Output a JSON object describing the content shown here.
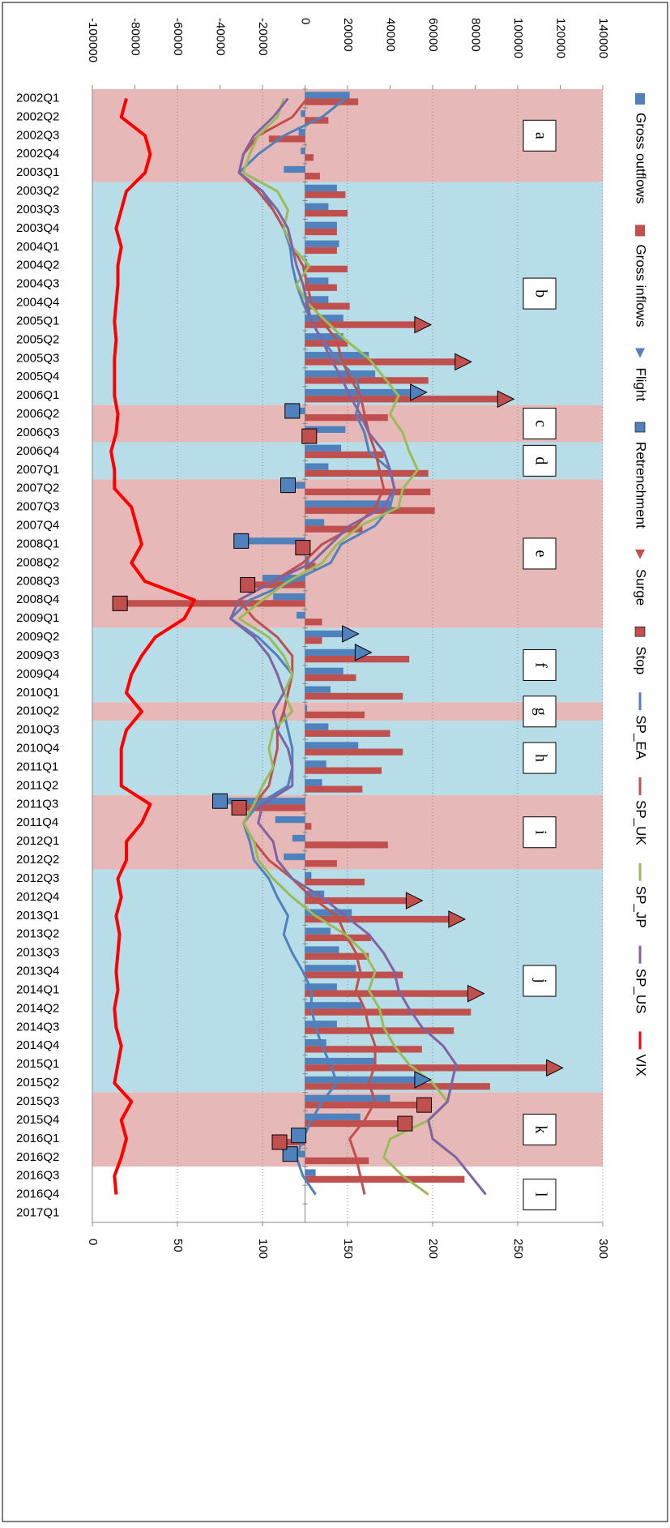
{
  "chart_data": {
    "type": "bar",
    "orientation": "horizontal",
    "categories": [
      "2002Q1",
      "2002Q2",
      "2002Q3",
      "2002Q4",
      "2003Q1",
      "2003Q2",
      "2003Q3",
      "2003Q4",
      "2004Q1",
      "2004Q2",
      "2004Q3",
      "2004Q4",
      "2005Q1",
      "2005Q2",
      "2005Q3",
      "2005Q4",
      "2006Q1",
      "2006Q2",
      "2006Q3",
      "2006Q4",
      "2007Q1",
      "2007Q2",
      "2007Q3",
      "2007Q4",
      "2008Q1",
      "2008Q2",
      "2008Q3",
      "2008Q4",
      "2009Q1",
      "2009Q2",
      "2009Q3",
      "2009Q4",
      "2010Q1",
      "2010Q2",
      "2010Q3",
      "2010Q4",
      "2011Q1",
      "2011Q2",
      "2011Q3",
      "2011Q4",
      "2012Q1",
      "2012Q2",
      "2012Q3",
      "2012Q4",
      "2013Q1",
      "2013Q2",
      "2013Q3",
      "2013Q4",
      "2014Q1",
      "2014Q2",
      "2014Q3",
      "2014Q4",
      "2015Q1",
      "2015Q2",
      "2015Q3",
      "2015Q4",
      "2016Q1",
      "2016Q2",
      "2016Q3",
      "2016Q4",
      "2017Q1"
    ],
    "ylim": [
      -100000,
      140000
    ],
    "yticks": [
      -100000,
      -80000,
      -60000,
      -40000,
      -20000,
      0,
      20000,
      40000,
      60000,
      80000,
      100000,
      120000,
      140000
    ],
    "y2lim": [
      0,
      300
    ],
    "y2ticks": [
      0,
      50,
      100,
      150,
      200,
      250,
      300
    ],
    "grid": true,
    "series": [
      {
        "name": "Gross outflows",
        "kind": "bar",
        "color": "#4f81bd",
        "values": [
          21000,
          -2000,
          -3000,
          -2000,
          -10000,
          15000,
          11000,
          15000,
          16000,
          1000,
          11000,
          11000,
          18000,
          18000,
          30000,
          33000,
          53000,
          -6000,
          19000,
          17000,
          11000,
          -8000,
          40000,
          9000,
          -30000,
          2000,
          -20000,
          -15000,
          -4000,
          21000,
          27000,
          18000,
          12000,
          1000,
          11000,
          25000,
          10000,
          8000,
          -40000,
          -14000,
          -6000,
          -10000,
          3000,
          9000,
          22000,
          12000,
          16000,
          24000,
          15000,
          27000,
          15000,
          10000,
          33000,
          55000,
          40000,
          26000,
          -3000,
          -7000,
          5000,
          null,
          null
        ]
      },
      {
        "name": "Gross inflows",
        "kind": "bar",
        "color": "#c0504d",
        "values": [
          25000,
          11000,
          -17000,
          4000,
          7000,
          19000,
          20000,
          15000,
          15000,
          20000,
          15000,
          21000,
          55000,
          20000,
          74000,
          58000,
          94000,
          39000,
          2000,
          37000,
          58000,
          59000,
          61000,
          27000,
          -1000,
          5000,
          -27000,
          -87000,
          8000,
          8000,
          49000,
          24000,
          46000,
          28000,
          40000,
          46000,
          36000,
          27000,
          -31000,
          3000,
          39000,
          15000,
          28000,
          51000,
          71000,
          31000,
          30000,
          46000,
          80000,
          78000,
          70000,
          55000,
          117000,
          87000,
          56000,
          47000,
          -12000,
          30000,
          75000,
          null,
          null
        ]
      },
      {
        "name": "Flight",
        "kind": "marker",
        "shape": "triangle",
        "on": 0,
        "color": "#4f81bd",
        "values": [
          null,
          null,
          null,
          null,
          null,
          null,
          null,
          null,
          null,
          null,
          null,
          null,
          null,
          null,
          null,
          null,
          53000,
          null,
          null,
          null,
          null,
          null,
          null,
          null,
          null,
          null,
          null,
          null,
          null,
          21000,
          27000,
          null,
          null,
          null,
          null,
          null,
          null,
          null,
          null,
          null,
          null,
          null,
          null,
          null,
          null,
          null,
          null,
          null,
          null,
          null,
          null,
          null,
          null,
          55000,
          null,
          null,
          null,
          null,
          null,
          null,
          null
        ]
      },
      {
        "name": "Retrenchment",
        "kind": "marker",
        "shape": "square",
        "on": 0,
        "color": "#4f81bd",
        "values": [
          null,
          null,
          null,
          null,
          null,
          null,
          null,
          null,
          null,
          null,
          null,
          null,
          null,
          null,
          null,
          null,
          null,
          -6000,
          null,
          null,
          null,
          -8000,
          null,
          null,
          -30000,
          null,
          null,
          null,
          null,
          null,
          null,
          null,
          null,
          null,
          null,
          null,
          null,
          null,
          -40000,
          null,
          null,
          null,
          null,
          null,
          null,
          null,
          null,
          null,
          null,
          null,
          null,
          null,
          null,
          null,
          null,
          null,
          -3000,
          -7000,
          null,
          null,
          null
        ]
      },
      {
        "name": "Surge",
        "kind": "marker",
        "shape": "triangle",
        "on": 1,
        "color": "#c0504d",
        "values": [
          null,
          null,
          null,
          null,
          null,
          null,
          null,
          null,
          null,
          null,
          null,
          null,
          55000,
          null,
          74000,
          null,
          94000,
          null,
          null,
          null,
          null,
          null,
          null,
          null,
          null,
          null,
          null,
          null,
          null,
          null,
          null,
          null,
          null,
          null,
          null,
          null,
          null,
          null,
          null,
          null,
          null,
          null,
          null,
          51000,
          71000,
          null,
          null,
          null,
          80000,
          null,
          null,
          null,
          117000,
          null,
          null,
          null,
          null,
          null,
          null,
          null,
          null
        ]
      },
      {
        "name": "Stop",
        "kind": "marker",
        "shape": "square",
        "on": 1,
        "color": "#c0504d",
        "values": [
          null,
          null,
          null,
          null,
          null,
          null,
          null,
          null,
          null,
          null,
          null,
          null,
          null,
          null,
          null,
          null,
          null,
          null,
          2000,
          null,
          null,
          null,
          null,
          null,
          -1000,
          null,
          -27000,
          -87000,
          null,
          null,
          null,
          null,
          null,
          null,
          null,
          null,
          null,
          null,
          -31000,
          null,
          null,
          null,
          null,
          null,
          null,
          null,
          null,
          null,
          null,
          null,
          null,
          null,
          null,
          null,
          56000,
          47000,
          -12000,
          null,
          null,
          null,
          null
        ]
      },
      {
        "name": "SP_EA",
        "kind": "line",
        "color": "#4f81bd",
        "values": [
          19000,
          8000,
          -10000,
          -22000,
          -31000,
          -20000,
          -15000,
          -10000,
          -7000,
          -6000,
          -4000,
          -1000,
          3000,
          8000,
          15000,
          24000,
          26000,
          24000,
          28000,
          30000,
          40000,
          42000,
          40000,
          33000,
          17000,
          12000,
          -6000,
          -26000,
          -35000,
          -22000,
          -13000,
          -6000,
          -8000,
          -10000,
          -8000,
          -6000,
          -6000,
          -8000,
          -22000,
          -29000,
          -26000,
          -24000,
          -17000,
          -13000,
          -8000,
          -10000,
          -6000,
          -1000,
          3000,
          3000,
          5000,
          8000,
          12000,
          15000,
          8000,
          3000,
          -1000,
          -4000,
          -1000,
          5000,
          null
        ]
      },
      {
        "name": "SP_UK",
        "kind": "line",
        "color": "#c0504d",
        "values": [
          1000,
          -6000,
          -22000,
          -29000,
          -31000,
          -22000,
          -15000,
          -10000,
          -6000,
          -1000,
          1000,
          3000,
          8000,
          15000,
          17000,
          21000,
          26000,
          28000,
          30000,
          33000,
          35000,
          37000,
          33000,
          24000,
          8000,
          -1000,
          -15000,
          -31000,
          -24000,
          -13000,
          -6000,
          -6000,
          -8000,
          -10000,
          -13000,
          -13000,
          -15000,
          -17000,
          -24000,
          -29000,
          -24000,
          -17000,
          -6000,
          3000,
          15000,
          19000,
          24000,
          26000,
          24000,
          28000,
          30000,
          33000,
          33000,
          30000,
          33000,
          28000,
          21000,
          24000,
          26000,
          28000,
          null
        ]
      },
      {
        "name": "SP_JP",
        "kind": "line",
        "color": "#9bbb59",
        "values": [
          -10000,
          -13000,
          -22000,
          -26000,
          -29000,
          -13000,
          -8000,
          -10000,
          -6000,
          2000,
          -4000,
          1000,
          10000,
          19000,
          30000,
          37000,
          44000,
          40000,
          46000,
          49000,
          53000,
          46000,
          44000,
          26000,
          15000,
          8000,
          -8000,
          -20000,
          -31000,
          -17000,
          -10000,
          -6000,
          -10000,
          -6000,
          -15000,
          -17000,
          -15000,
          -20000,
          -24000,
          -29000,
          -24000,
          -22000,
          -15000,
          -6000,
          5000,
          19000,
          28000,
          33000,
          30000,
          35000,
          37000,
          42000,
          49000,
          60000,
          67000,
          58000,
          40000,
          37000,
          46000,
          58000,
          null
        ]
      },
      {
        "name": "SP_US",
        "kind": "line",
        "color": "#8064a2",
        "values": [
          -8000,
          -15000,
          -24000,
          -29000,
          -31000,
          -20000,
          -13000,
          -8000,
          -6000,
          -4000,
          -1000,
          1000,
          3000,
          8000,
          12000,
          17000,
          21000,
          26000,
          30000,
          37000,
          40000,
          42000,
          37000,
          21000,
          12000,
          3000,
          -15000,
          -31000,
          -35000,
          -24000,
          -17000,
          -13000,
          -10000,
          -15000,
          -13000,
          -8000,
          -6000,
          -6000,
          -20000,
          -22000,
          -15000,
          -13000,
          -6000,
          8000,
          19000,
          30000,
          37000,
          42000,
          44000,
          49000,
          55000,
          65000,
          71000,
          69000,
          67000,
          58000,
          60000,
          71000,
          78000,
          85000,
          null
        ]
      },
      {
        "name": "VIX",
        "kind": "line",
        "axis": "y2",
        "color": "#ff0000",
        "values": [
          20,
          17,
          31,
          34,
          31,
          20,
          17,
          14,
          17,
          15,
          15,
          14,
          13,
          14,
          13,
          13,
          13,
          15,
          14,
          11,
          13,
          13,
          23,
          26,
          29,
          23,
          31,
          60,
          54,
          37,
          29,
          23,
          20,
          29,
          20,
          17,
          17,
          17,
          34,
          29,
          20,
          20,
          15,
          17,
          14,
          16,
          15,
          14,
          15,
          13,
          14,
          17,
          15,
          13,
          23,
          17,
          20,
          17,
          13,
          14,
          null
        ]
      }
    ],
    "episodes": [
      {
        "label": "a",
        "start": "2002Q1",
        "end": "2003Q1",
        "color": "#e6b9b8"
      },
      {
        "label": "b",
        "start": "2003Q2",
        "end": "2006Q1",
        "color": "#b7dde8"
      },
      {
        "label": "c",
        "start": "2006Q2",
        "end": "2006Q3",
        "color": "#e6b9b8"
      },
      {
        "label": "d",
        "start": "2006Q4",
        "end": "2007Q1",
        "color": "#b7dde8"
      },
      {
        "label": "e",
        "start": "2007Q2",
        "end": "2009Q1",
        "color": "#e6b9b8"
      },
      {
        "label": "f",
        "start": "2009Q2",
        "end": "2010Q1",
        "color": "#b7dde8"
      },
      {
        "label": "g",
        "start": "2010Q2",
        "end": "2010Q2",
        "color": "#e6b9b8"
      },
      {
        "label": "h",
        "start": "2010Q3",
        "end": "2011Q2",
        "color": "#b7dde8"
      },
      {
        "label": "i",
        "start": "2011Q3",
        "end": "2012Q2",
        "color": "#e6b9b8"
      },
      {
        "label": "j",
        "start": "2012Q3",
        "end": "2015Q2",
        "color": "#b7dde8"
      },
      {
        "label": "k",
        "start": "2015Q3",
        "end": "2016Q2",
        "color": "#e6b9b8"
      },
      {
        "label": "l",
        "start": "2016Q3",
        "end": "2017Q1",
        "color": "#ffffff"
      }
    ]
  }
}
